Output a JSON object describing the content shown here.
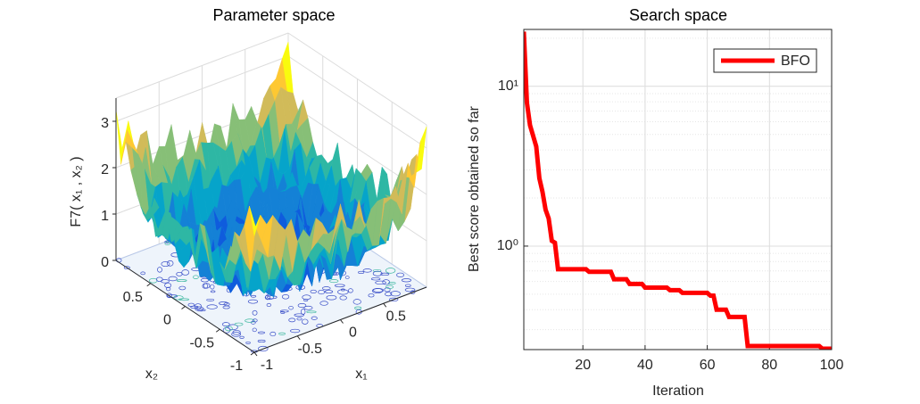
{
  "chart_data": [
    {
      "type": "surface3d",
      "title": "Parameter space",
      "xlabel": "x₁",
      "ylabel": "x₂",
      "zlabel": "F7( x₁ , x₂ )",
      "xlim": [
        -1,
        1
      ],
      "ylim": [
        -1,
        1
      ],
      "zlim": [
        0,
        3.5
      ],
      "xticks": [
        -1,
        -0.5,
        0,
        0.5
      ],
      "yticks": [
        -1,
        -0.5,
        0,
        0.5
      ],
      "zticks": [
        0,
        1,
        2,
        3
      ],
      "grid": true
    },
    {
      "type": "line",
      "title": "Search space",
      "xlabel": "Iteration",
      "ylabel": "Best score obtained so far",
      "yscale": "log",
      "grid": true,
      "minor_grid": true,
      "legend": "northeast",
      "xlim": [
        1,
        100
      ],
      "ylim": [
        0.225,
        22.7
      ],
      "xticks": [
        20,
        40,
        60,
        80,
        100
      ],
      "yticks": [
        {
          "value": 1,
          "label": "10⁰"
        },
        {
          "value": 10,
          "label": "10¹"
        }
      ],
      "x": [
        1,
        2,
        3,
        4,
        5,
        6,
        7,
        8,
        9,
        10,
        11,
        12,
        13,
        14,
        15,
        16,
        17,
        18,
        19,
        20,
        21,
        22,
        23,
        24,
        25,
        26,
        27,
        28,
        29,
        30,
        31,
        32,
        33,
        34,
        35,
        36,
        37,
        38,
        39,
        40,
        41,
        42,
        43,
        44,
        45,
        46,
        47,
        48,
        49,
        50,
        51,
        52,
        53,
        54,
        55,
        56,
        57,
        58,
        59,
        60,
        61,
        62,
        63,
        64,
        65,
        66,
        67,
        68,
        69,
        70,
        71,
        72,
        73,
        74,
        75,
        76,
        77,
        78,
        79,
        80,
        81,
        82,
        83,
        84,
        85,
        86,
        87,
        88,
        89,
        90,
        91,
        92,
        93,
        94,
        95,
        96,
        97,
        98,
        99,
        100
      ],
      "series": [
        {
          "name": "BFO",
          "color": "#ff0000",
          "values": [
            22,
            7.9,
            5.7,
            4.9,
            4.2,
            2.66,
            2.19,
            1.69,
            1.49,
            1.08,
            1.05,
            0.716,
            0.716,
            0.716,
            0.716,
            0.716,
            0.716,
            0.716,
            0.716,
            0.716,
            0.716,
            0.69,
            0.69,
            0.69,
            0.69,
            0.69,
            0.69,
            0.69,
            0.69,
            0.62,
            0.62,
            0.62,
            0.62,
            0.62,
            0.58,
            0.58,
            0.58,
            0.58,
            0.58,
            0.55,
            0.55,
            0.55,
            0.55,
            0.55,
            0.55,
            0.55,
            0.55,
            0.53,
            0.53,
            0.53,
            0.53,
            0.51,
            0.51,
            0.51,
            0.51,
            0.51,
            0.51,
            0.51,
            0.51,
            0.51,
            0.49,
            0.49,
            0.4,
            0.4,
            0.4,
            0.4,
            0.36,
            0.36,
            0.36,
            0.36,
            0.36,
            0.36,
            0.237,
            0.237,
            0.237,
            0.237,
            0.237,
            0.237,
            0.237,
            0.237,
            0.237,
            0.237,
            0.237,
            0.237,
            0.237,
            0.237,
            0.237,
            0.237,
            0.237,
            0.237,
            0.237,
            0.237,
            0.237,
            0.237,
            0.237,
            0.237,
            0.228,
            0.228,
            0.228,
            0.228
          ]
        }
      ]
    }
  ]
}
